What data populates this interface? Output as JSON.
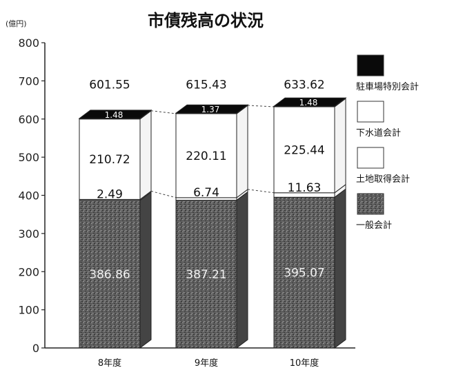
{
  "chart_data": {
    "type": "bar",
    "stacked": true,
    "title": "市債残高の状況",
    "unit_label": "(億円)",
    "ylim": [
      0,
      800
    ],
    "yticks": [
      0,
      100,
      200,
      300,
      400,
      500,
      600,
      700,
      800
    ],
    "categories": [
      "8年度",
      "9年度",
      "10年度"
    ],
    "totals": [
      "601.55",
      "615.43",
      "633.62"
    ],
    "series": [
      {
        "name": "一般会計",
        "values": [
          386.86,
          387.21,
          395.07
        ],
        "labels": [
          "386.86",
          "387.21",
          "395.07"
        ],
        "color": "#6a6a6a"
      },
      {
        "name": "土地取得会計",
        "values": [
          2.49,
          6.74,
          11.63
        ],
        "labels": [
          "2.49",
          "6.74",
          "11.63"
        ],
        "color": "#ffffff"
      },
      {
        "name": "下水道会計",
        "values": [
          210.72,
          220.11,
          225.44
        ],
        "labels": [
          "210.72",
          "220.11",
          "225.44"
        ],
        "color": "#ffffff"
      },
      {
        "name": "駐車場特別会計",
        "values": [
          1.48,
          1.37,
          1.48
        ],
        "labels": [
          "1.48",
          "1.37",
          "1.48"
        ],
        "color": "#0a0a0a"
      }
    ],
    "legend_order": [
      "駐車場特別会計",
      "下水道会計",
      "土地取得会計",
      "一般会計"
    ],
    "legend_position": "right",
    "grid": false
  }
}
